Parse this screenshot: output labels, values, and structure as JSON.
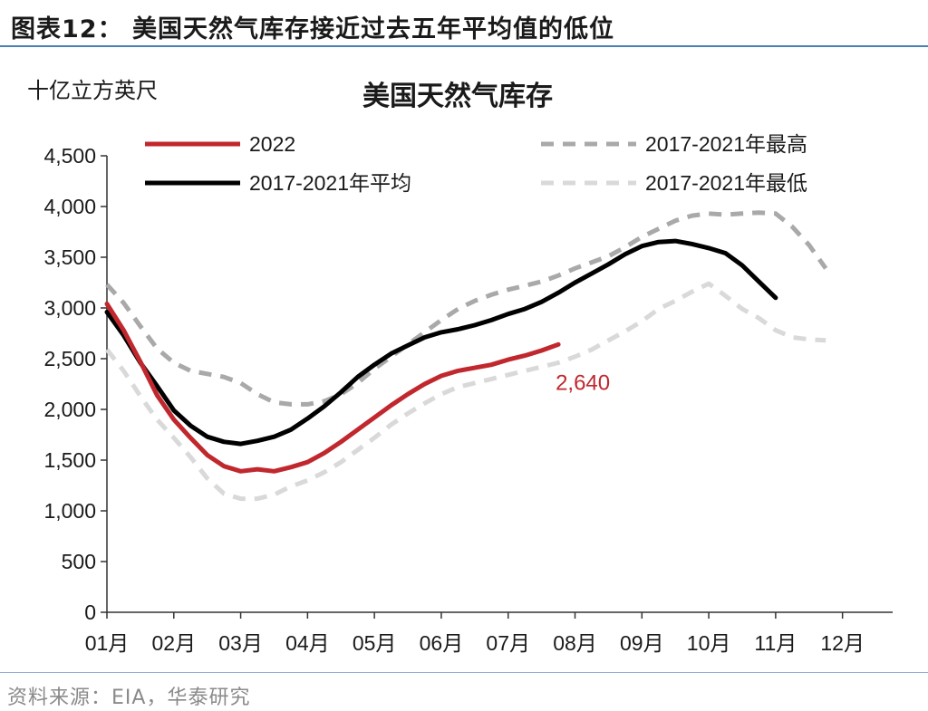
{
  "figure": {
    "title": "图表12：  美国天然气库存接近过去五年平均值的低位",
    "source": "资料来源：EIA，华泰研究"
  },
  "colors": {
    "s2022": "#c0282e",
    "avg": "#000000",
    "max": "#a9a9a9",
    "min": "#d9d9d9",
    "axis": "#333333",
    "frame_rule": "#4a7fb5"
  },
  "chart_data": {
    "type": "line",
    "title": "美国天然气库存",
    "ylabel": "十亿立方英尺",
    "ylim": [
      0,
      4500
    ],
    "xlim": [
      1,
      12.75
    ],
    "yticks": [
      {
        "value": 0,
        "label": "0"
      },
      {
        "value": 500,
        "label": "500"
      },
      {
        "value": 1000,
        "label": "1,000"
      },
      {
        "value": 1500,
        "label": "1,500"
      },
      {
        "value": 2000,
        "label": "2,000"
      },
      {
        "value": 2500,
        "label": "2,500"
      },
      {
        "value": 3000,
        "label": "3,000"
      },
      {
        "value": 3500,
        "label": "3,500"
      },
      {
        "value": 4000,
        "label": "4,000"
      },
      {
        "value": 4500,
        "label": "4,500"
      }
    ],
    "xticks": [
      {
        "value": 1,
        "label": "01月"
      },
      {
        "value": 2,
        "label": "02月"
      },
      {
        "value": 3,
        "label": "03月"
      },
      {
        "value": 4,
        "label": "04月"
      },
      {
        "value": 5,
        "label": "05月"
      },
      {
        "value": 6,
        "label": "06月"
      },
      {
        "value": 7,
        "label": "07月"
      },
      {
        "value": 8,
        "label": "08月"
      },
      {
        "value": 9,
        "label": "09月"
      },
      {
        "value": 10,
        "label": "10月"
      },
      {
        "value": 11,
        "label": "11月"
      },
      {
        "value": 12,
        "label": "12月"
      }
    ],
    "grid": false,
    "legend": "top",
    "series": [
      {
        "name": "2017-2021年最高",
        "style": "dash",
        "color_key": "max",
        "points": [
          [
            1.0,
            3230
          ],
          [
            1.25,
            3050
          ],
          [
            1.5,
            2820
          ],
          [
            1.75,
            2600
          ],
          [
            2.0,
            2460
          ],
          [
            2.25,
            2380
          ],
          [
            2.5,
            2350
          ],
          [
            2.75,
            2320
          ],
          [
            3.0,
            2260
          ],
          [
            3.25,
            2150
          ],
          [
            3.5,
            2070
          ],
          [
            3.75,
            2050
          ],
          [
            4.0,
            2050
          ],
          [
            4.25,
            2080
          ],
          [
            4.5,
            2150
          ],
          [
            4.75,
            2260
          ],
          [
            5.0,
            2400
          ],
          [
            5.25,
            2520
          ],
          [
            5.5,
            2640
          ],
          [
            5.75,
            2760
          ],
          [
            6.0,
            2880
          ],
          [
            6.25,
            2990
          ],
          [
            6.5,
            3070
          ],
          [
            6.75,
            3130
          ],
          [
            7.0,
            3180
          ],
          [
            7.25,
            3220
          ],
          [
            7.5,
            3260
          ],
          [
            7.75,
            3320
          ],
          [
            8.0,
            3390
          ],
          [
            8.25,
            3450
          ],
          [
            8.5,
            3510
          ],
          [
            8.75,
            3600
          ],
          [
            9.0,
            3700
          ],
          [
            9.25,
            3780
          ],
          [
            9.5,
            3860
          ],
          [
            9.75,
            3910
          ],
          [
            10.0,
            3930
          ],
          [
            10.25,
            3920
          ],
          [
            10.5,
            3930
          ],
          [
            10.75,
            3940
          ],
          [
            11.0,
            3930
          ],
          [
            11.25,
            3800
          ],
          [
            11.5,
            3620
          ],
          [
            11.75,
            3390
          ]
        ]
      },
      {
        "name": "2017-2021年最低",
        "style": "dash",
        "color_key": "min",
        "points": [
          [
            1.0,
            2590
          ],
          [
            1.25,
            2380
          ],
          [
            1.5,
            2130
          ],
          [
            1.75,
            1900
          ],
          [
            2.0,
            1720
          ],
          [
            2.25,
            1530
          ],
          [
            2.5,
            1320
          ],
          [
            2.75,
            1170
          ],
          [
            3.0,
            1120
          ],
          [
            3.25,
            1120
          ],
          [
            3.5,
            1160
          ],
          [
            3.75,
            1240
          ],
          [
            4.0,
            1300
          ],
          [
            4.25,
            1380
          ],
          [
            4.5,
            1480
          ],
          [
            4.75,
            1600
          ],
          [
            5.0,
            1720
          ],
          [
            5.25,
            1850
          ],
          [
            5.5,
            1960
          ],
          [
            5.75,
            2060
          ],
          [
            6.0,
            2150
          ],
          [
            6.25,
            2220
          ],
          [
            6.5,
            2260
          ],
          [
            6.75,
            2300
          ],
          [
            7.0,
            2340
          ],
          [
            7.25,
            2380
          ],
          [
            7.5,
            2420
          ],
          [
            7.75,
            2460
          ],
          [
            8.0,
            2520
          ],
          [
            8.25,
            2590
          ],
          [
            8.5,
            2680
          ],
          [
            8.75,
            2770
          ],
          [
            9.0,
            2870
          ],
          [
            9.25,
            2990
          ],
          [
            9.5,
            3070
          ],
          [
            9.75,
            3160
          ],
          [
            10.0,
            3240
          ],
          [
            10.25,
            3120
          ],
          [
            10.5,
            2990
          ],
          [
            10.75,
            2900
          ],
          [
            11.0,
            2780
          ],
          [
            11.25,
            2710
          ],
          [
            11.5,
            2690
          ],
          [
            11.75,
            2680
          ]
        ]
      },
      {
        "name": "2017-2021年平均",
        "style": "solid",
        "color_key": "avg",
        "points": [
          [
            1.0,
            2960
          ],
          [
            1.25,
            2730
          ],
          [
            1.5,
            2460
          ],
          [
            1.75,
            2230
          ],
          [
            2.0,
            1990
          ],
          [
            2.25,
            1840
          ],
          [
            2.5,
            1730
          ],
          [
            2.75,
            1680
          ],
          [
            3.0,
            1660
          ],
          [
            3.25,
            1690
          ],
          [
            3.5,
            1730
          ],
          [
            3.75,
            1800
          ],
          [
            4.0,
            1910
          ],
          [
            4.25,
            2030
          ],
          [
            4.5,
            2170
          ],
          [
            4.75,
            2320
          ],
          [
            5.0,
            2440
          ],
          [
            5.25,
            2550
          ],
          [
            5.5,
            2630
          ],
          [
            5.75,
            2710
          ],
          [
            6.0,
            2760
          ],
          [
            6.25,
            2790
          ],
          [
            6.5,
            2830
          ],
          [
            6.75,
            2880
          ],
          [
            7.0,
            2940
          ],
          [
            7.25,
            2990
          ],
          [
            7.5,
            3060
          ],
          [
            7.75,
            3150
          ],
          [
            8.0,
            3250
          ],
          [
            8.25,
            3340
          ],
          [
            8.5,
            3430
          ],
          [
            8.75,
            3530
          ],
          [
            9.0,
            3610
          ],
          [
            9.25,
            3650
          ],
          [
            9.5,
            3660
          ],
          [
            9.75,
            3630
          ],
          [
            10.0,
            3590
          ],
          [
            10.25,
            3540
          ],
          [
            10.5,
            3420
          ],
          [
            10.75,
            3260
          ],
          [
            11.0,
            3100
          ]
        ]
      },
      {
        "name": "2022",
        "style": "solid",
        "color_key": "s2022",
        "points": [
          [
            1.0,
            3040
          ],
          [
            1.25,
            2780
          ],
          [
            1.5,
            2470
          ],
          [
            1.75,
            2140
          ],
          [
            2.0,
            1900
          ],
          [
            2.25,
            1720
          ],
          [
            2.5,
            1550
          ],
          [
            2.75,
            1440
          ],
          [
            3.0,
            1390
          ],
          [
            3.25,
            1410
          ],
          [
            3.5,
            1390
          ],
          [
            3.75,
            1430
          ],
          [
            4.0,
            1480
          ],
          [
            4.25,
            1570
          ],
          [
            4.5,
            1680
          ],
          [
            4.75,
            1800
          ],
          [
            5.0,
            1920
          ],
          [
            5.25,
            2040
          ],
          [
            5.5,
            2150
          ],
          [
            5.75,
            2250
          ],
          [
            6.0,
            2330
          ],
          [
            6.25,
            2380
          ],
          [
            6.5,
            2410
          ],
          [
            6.75,
            2440
          ],
          [
            7.0,
            2490
          ],
          [
            7.25,
            2530
          ],
          [
            7.5,
            2580
          ],
          [
            7.75,
            2640
          ]
        ]
      }
    ],
    "legend_entries": [
      {
        "label": "2022",
        "series": "2022",
        "style": "solid"
      },
      {
        "label": "2017-2021年最高",
        "series": "2017-2021年最高",
        "style": "dash"
      },
      {
        "label": "2017-2021年平均",
        "series": "2017-2021年平均",
        "style": "solid"
      },
      {
        "label": "2017-2021年最低",
        "series": "2017-2021年最低",
        "style": "dash"
      }
    ],
    "annotations": [
      {
        "text": "2,640",
        "x": 7.75,
        "y": 2640,
        "color_key": "s2022"
      }
    ]
  }
}
